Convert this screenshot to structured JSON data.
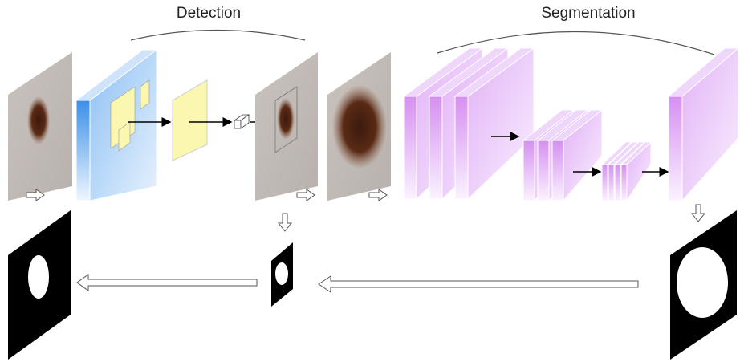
{
  "labels": {
    "detection": "Detection",
    "segmentation": "Segmentation"
  }
}
